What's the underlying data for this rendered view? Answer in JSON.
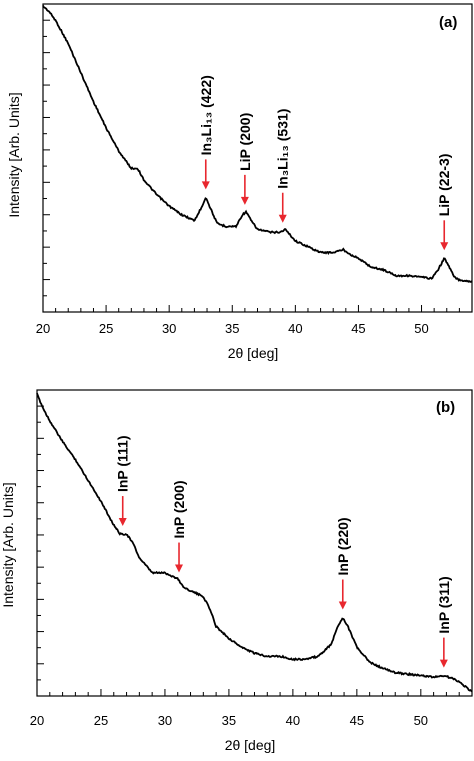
{
  "chart_data": [
    {
      "type": "line",
      "panel_label": "(a)",
      "xlabel": "2θ [deg]",
      "ylabel": "Intensity [Arb. Units]",
      "xlim": [
        20,
        54
      ],
      "x_ticks": [
        "20",
        "25",
        "30",
        "35",
        "40",
        "45",
        "50"
      ],
      "y_ticks_labeled": false,
      "series": [
        {
          "x": [
            20,
            20.5,
            21,
            22,
            23,
            24,
            25,
            26,
            27,
            27.5,
            28,
            29,
            30,
            31,
            32,
            32.5,
            32.9,
            33.3,
            33.8,
            34.5,
            35.3,
            35.8,
            36.1,
            36.5,
            37,
            38,
            38.8,
            39.2,
            39.6,
            40,
            41,
            42,
            43,
            43.8,
            44.5,
            45,
            46,
            47,
            48,
            49,
            50,
            50.8,
            51.3,
            51.8,
            52.2,
            52.6,
            53,
            54
          ],
          "y": [
            100,
            98,
            95,
            87,
            77,
            67,
            58,
            50,
            44,
            44,
            40,
            35,
            31,
            28,
            26,
            30,
            34,
            30,
            25,
            24,
            24,
            28,
            29,
            26,
            23,
            22,
            22,
            23,
            21,
            19,
            17,
            15,
            15,
            16,
            14,
            13,
            10,
            9,
            7,
            7,
            6.5,
            6,
            9,
            13,
            10,
            6.5,
            5.5,
            5
          ]
        }
      ],
      "annotations": [
        {
          "text": "In₃Li₁₃ (422)",
          "x": 32.9
        },
        {
          "text": "LiP (200)",
          "x": 36.0
        },
        {
          "text": "In₃Li₁₃ (531)",
          "x": 39.0
        },
        {
          "text": "LiP (22-3)",
          "x": 51.8
        }
      ],
      "arrow_color": "#e8272e"
    },
    {
      "type": "line",
      "panel_label": "(b)",
      "xlabel": "2θ [deg]",
      "ylabel": "Intensity [Arb. Units]",
      "xlim": [
        20,
        54
      ],
      "x_ticks": [
        "20",
        "25",
        "30",
        "35",
        "40",
        "45",
        "50"
      ],
      "y_ticks_labeled": false,
      "series": [
        {
          "x": [
            20,
            20.5,
            21,
            22,
            23,
            24,
            25,
            26,
            26.5,
            27,
            27.5,
            28,
            29,
            30,
            31,
            31.5,
            32,
            32.5,
            33,
            33.5,
            34,
            35,
            36,
            37,
            38,
            39,
            40,
            41,
            42,
            43,
            43.5,
            43.9,
            44.3,
            45,
            46,
            47,
            48,
            49,
            50,
            51,
            51.8,
            52.5,
            53,
            54
          ],
          "y": [
            100,
            95,
            91,
            84,
            78,
            71,
            64,
            56,
            53,
            53,
            50,
            45,
            40,
            40,
            38,
            35,
            34,
            33,
            32,
            28,
            22,
            18,
            15,
            13,
            12,
            12,
            11,
            11,
            12,
            16,
            22,
            25,
            22,
            15,
            10,
            8,
            6.5,
            6,
            5.5,
            5,
            5.5,
            4.5,
            3.5,
            0
          ]
        }
      ],
      "annotations": [
        {
          "text": "InP (111)",
          "x": 26.7
        },
        {
          "text": "InP (200)",
          "x": 31.1
        },
        {
          "text": "InP (220)",
          "x": 43.9
        },
        {
          "text": "InP (311)",
          "x": 51.8
        }
      ],
      "arrow_color": "#e8272e"
    }
  ]
}
